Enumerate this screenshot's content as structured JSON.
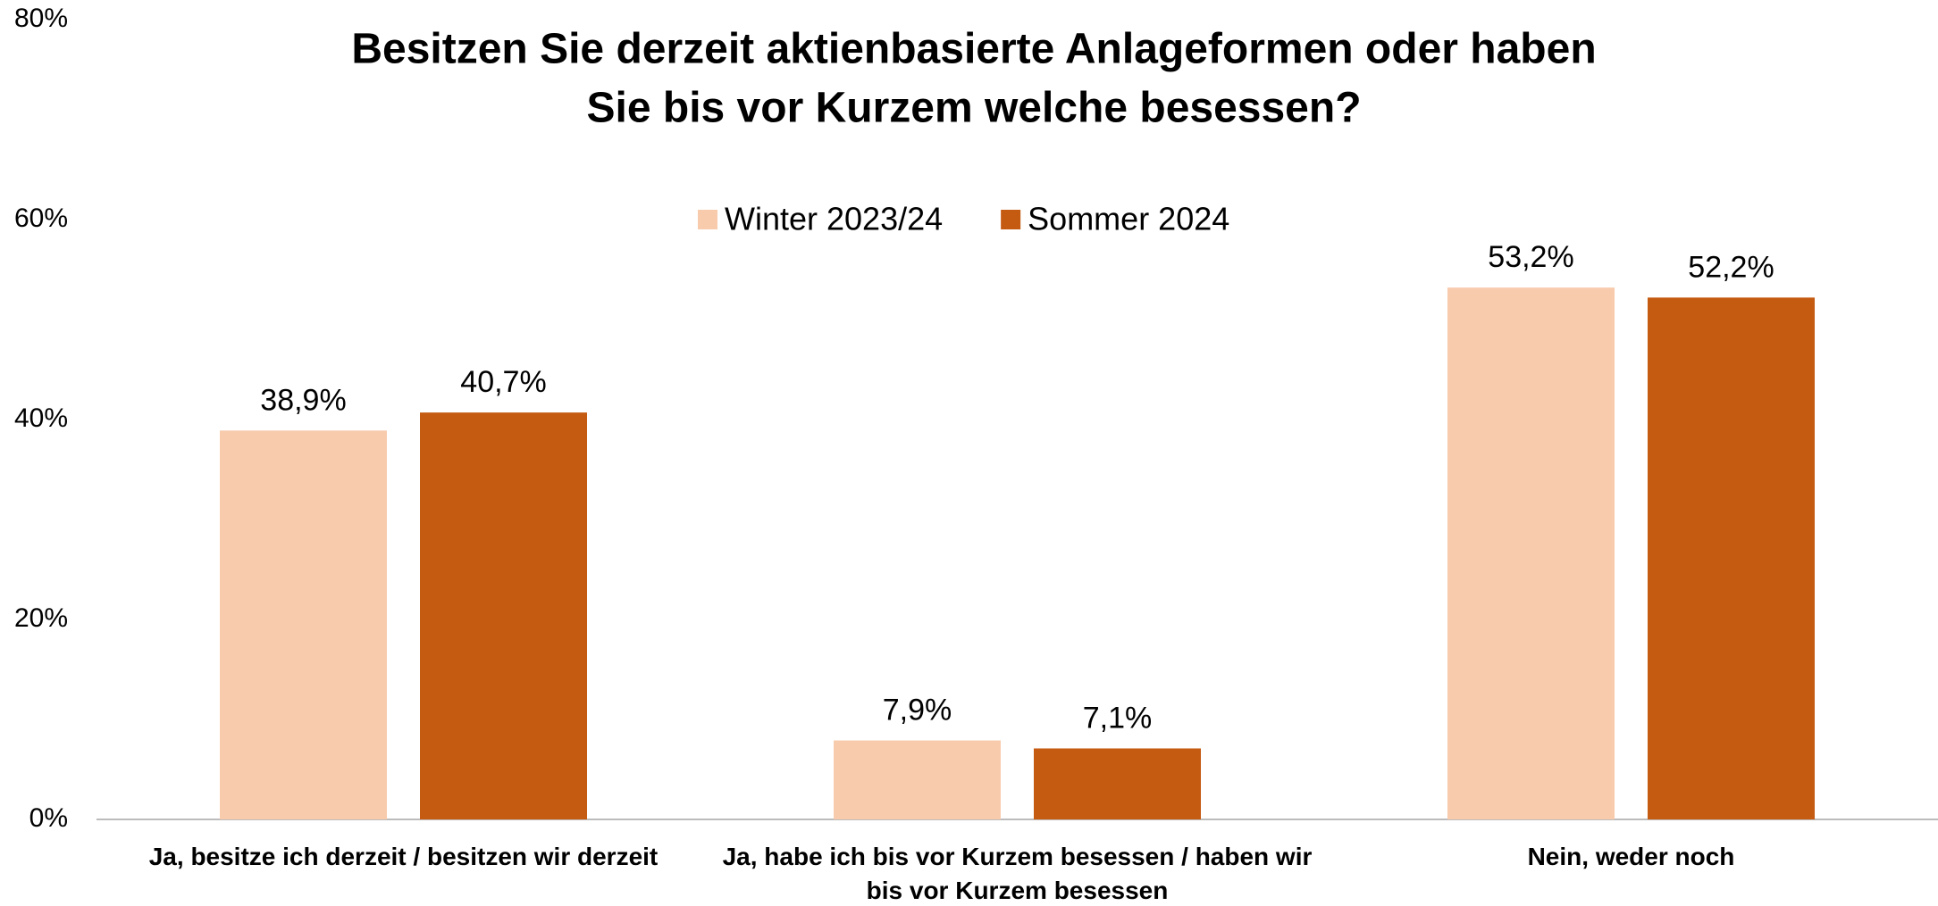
{
  "chart_data": {
    "type": "bar",
    "title": [
      "Besitzen Sie derzeit aktienbasierte Anlageformen oder haben",
      "Sie bis vor Kurzem welche besessen?"
    ],
    "categories": [
      "Ja, besitze ich derzeit / besitzen wir derzeit",
      "Ja, habe ich bis vor Kurzem besessen / haben wir bis vor Kurzem besessen",
      "Nein, weder noch"
    ],
    "series": [
      {
        "name": "Winter 2023/24",
        "color": "#f8cbad",
        "values": [
          38.9,
          7.9,
          53.2
        ],
        "value_labels": [
          "38,9%",
          "7,9%",
          "53,2%"
        ]
      },
      {
        "name": "Sommer 2024",
        "color": "#c55a11",
        "values": [
          40.7,
          7.1,
          52.2
        ],
        "value_labels": [
          "40,7%",
          "7,1%",
          "52,2%"
        ]
      }
    ],
    "ylim": [
      0,
      80
    ],
    "yticks": [
      {
        "value": 0,
        "label": "0%"
      },
      {
        "value": 20,
        "label": "20%"
      },
      {
        "value": 40,
        "label": "40%"
      },
      {
        "value": 60,
        "label": "60%"
      },
      {
        "value": 80,
        "label": "80%"
      }
    ],
    "legend": "top"
  }
}
